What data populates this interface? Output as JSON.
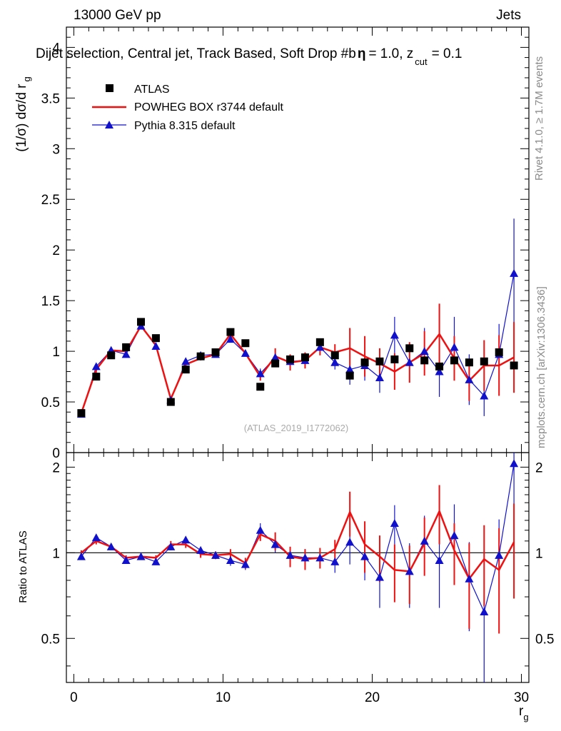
{
  "header": {
    "energy": "13000 GeV pp",
    "category": "Jets",
    "title": "Dijet selection, Central jet, Track Based, Soft Drop #b",
    "title_beta": "= 1.0, z",
    "title_zsub": "cut",
    "title_zval": "= 0.1"
  },
  "side": {
    "rivet": "Rivet 4.1.0, ≥ 1.7M events",
    "mcplots": "mcplots.cern.ch [arXiv:1306.3436]"
  },
  "watermark": "(ATLAS_2019_I1772062)",
  "legend": {
    "atlas": "ATLAS",
    "powheg": "POWHEG BOX r3744 default",
    "pythia": "Pythia 8.315 default"
  },
  "axes": {
    "ylabel_top": "(1/σ) dσ/d r",
    "ylabel_top_sub": "g",
    "ylabel_ratio": "Ratio to ATLAS",
    "xlabel": "r",
    "xlabel_sub": "g"
  },
  "colors": {
    "data": "#000000",
    "powheg": "#ee1111",
    "pythia": "#1111cc"
  },
  "chart_data": [
    {
      "type": "scatter",
      "panel": "main",
      "xlim": [
        -0.5,
        30.5
      ],
      "ylim": [
        0,
        4.2
      ],
      "xticks": [
        0,
        10,
        20,
        30
      ],
      "yticks": [
        0,
        0.5,
        1,
        1.5,
        2,
        2.5,
        3,
        3.5,
        4
      ],
      "ytick_labels": [
        "0",
        "0.5",
        "1",
        "1.5",
        "2",
        "2.5",
        "3",
        "3.5",
        "4"
      ],
      "x": [
        0.5,
        1.5,
        2.5,
        3.5,
        4.5,
        5.5,
        6.5,
        7.5,
        8.5,
        9.5,
        10.5,
        11.5,
        12.5,
        13.5,
        14.5,
        15.5,
        16.5,
        17.5,
        18.5,
        19.5,
        20.5,
        21.5,
        22.5,
        23.5,
        24.5,
        25.5,
        26.5,
        27.5,
        28.5,
        29.5
      ],
      "series": [
        {
          "name": "ATLAS",
          "style": "square",
          "values": [
            0.39,
            0.75,
            0.96,
            1.04,
            1.29,
            1.13,
            0.5,
            0.82,
            0.95,
            0.99,
            1.19,
            1.08,
            0.65,
            0.88,
            0.92,
            0.94,
            1.09,
            0.96,
            0.76,
            0.89,
            0.9,
            0.92,
            1.03,
            0.91,
            0.85,
            0.91,
            0.89,
            0.9,
            0.99,
            0.86
          ],
          "errors": [
            0.02,
            0.02,
            0.02,
            0.02,
            0.02,
            0.02,
            0.02,
            0.02,
            0.02,
            0.02,
            0.02,
            0.02,
            0.02,
            0.02,
            0.02,
            0.02,
            0.02,
            0.02,
            0.02,
            0.02,
            0.02,
            0.02,
            0.02,
            0.02,
            0.02,
            0.02,
            0.02,
            0.02,
            0.02,
            0.02
          ]
        },
        {
          "name": "POWHEG BOX r3744 default",
          "style": "line",
          "values": [
            0.39,
            0.82,
            1.01,
            1.0,
            1.25,
            1.06,
            0.53,
            0.87,
            0.93,
            0.97,
            1.17,
            0.98,
            0.75,
            0.95,
            0.89,
            0.91,
            1.04,
            0.99,
            1.03,
            0.95,
            0.88,
            0.8,
            0.89,
            0.98,
            1.17,
            0.93,
            0.71,
            0.86,
            0.86,
            0.94
          ],
          "errors": [
            0.02,
            0.03,
            0.02,
            0.02,
            0.02,
            0.02,
            0.02,
            0.02,
            0.02,
            0.03,
            0.03,
            0.03,
            0.04,
            0.08,
            0.08,
            0.08,
            0.08,
            0.08,
            0.2,
            0.2,
            0.15,
            0.18,
            0.2,
            0.22,
            0.3,
            0.22,
            0.2,
            0.25,
            0.3,
            0.35
          ]
        },
        {
          "name": "Pythia 8.315 default",
          "style": "triangle",
          "values": [
            0.38,
            0.85,
            1.01,
            0.97,
            1.25,
            1.05,
            0.52,
            0.9,
            0.96,
            0.97,
            1.12,
            0.98,
            0.78,
            0.94,
            0.9,
            0.91,
            1.04,
            0.89,
            0.82,
            0.86,
            0.74,
            1.16,
            0.89,
            1.0,
            0.8,
            1.04,
            0.72,
            0.56,
            0.97,
            1.77
          ],
          "errors": [
            0.02,
            0.02,
            0.02,
            0.02,
            0.02,
            0.02,
            0.02,
            0.02,
            0.02,
            0.03,
            0.03,
            0.03,
            0.05,
            0.06,
            0.06,
            0.06,
            0.06,
            0.07,
            0.15,
            0.15,
            0.15,
            0.18,
            0.2,
            0.23,
            0.25,
            0.3,
            0.25,
            0.2,
            0.3,
            0.54
          ]
        }
      ]
    },
    {
      "type": "line",
      "panel": "ratio",
      "ylabel": "Ratio to ATLAS",
      "xlabel": "r_g",
      "xlim": [
        -0.5,
        30.5
      ],
      "ylim": [
        0.35,
        2.25
      ],
      "yticks": [
        0.5,
        1,
        2
      ],
      "ytick_labels": [
        "0.5",
        "1",
        "2"
      ],
      "xtick_labels": [
        "0",
        "10",
        "20",
        "30"
      ],
      "x": [
        0.5,
        1.5,
        2.5,
        3.5,
        4.5,
        5.5,
        6.5,
        7.5,
        8.5,
        9.5,
        10.5,
        11.5,
        12.5,
        13.5,
        14.5,
        15.5,
        16.5,
        17.5,
        18.5,
        19.5,
        20.5,
        21.5,
        22.5,
        23.5,
        24.5,
        25.5,
        26.5,
        27.5,
        28.5,
        29.5
      ],
      "series": [
        {
          "name": "POWHEG BOX r3744 default",
          "values": [
            1.0,
            1.1,
            1.05,
            0.96,
            0.97,
            0.96,
            1.07,
            1.07,
            0.99,
            0.98,
            0.99,
            0.92,
            1.16,
            1.1,
            0.97,
            0.95,
            0.96,
            1.03,
            1.39,
            1.07,
            0.97,
            0.87,
            0.86,
            1.08,
            1.4,
            1.02,
            0.81,
            0.95,
            0.87,
            1.09
          ],
          "errors": [
            0.02,
            0.03,
            0.02,
            0.02,
            0.02,
            0.02,
            0.03,
            0.03,
            0.03,
            0.03,
            0.04,
            0.04,
            0.06,
            0.08,
            0.08,
            0.08,
            0.08,
            0.08,
            0.25,
            0.22,
            0.18,
            0.2,
            0.2,
            0.25,
            0.33,
            0.25,
            0.27,
            0.3,
            0.35,
            0.4
          ]
        },
        {
          "name": "Pythia 8.315 default",
          "values": [
            0.97,
            1.13,
            1.05,
            0.94,
            0.97,
            0.93,
            1.05,
            1.11,
            1.02,
            0.98,
            0.94,
            0.91,
            1.2,
            1.07,
            0.98,
            0.96,
            0.96,
            0.93,
            1.09,
            0.97,
            0.82,
            1.27,
            0.86,
            1.1,
            0.94,
            1.15,
            0.81,
            0.62,
            0.98,
            2.06
          ],
          "errors": [
            0.02,
            0.03,
            0.02,
            0.02,
            0.02,
            0.02,
            0.03,
            0.03,
            0.03,
            0.03,
            0.04,
            0.04,
            0.07,
            0.07,
            0.07,
            0.07,
            0.07,
            0.08,
            0.18,
            0.17,
            0.18,
            0.2,
            0.22,
            0.25,
            0.3,
            0.33,
            0.28,
            0.3,
            0.33,
            0.63
          ]
        }
      ]
    }
  ]
}
